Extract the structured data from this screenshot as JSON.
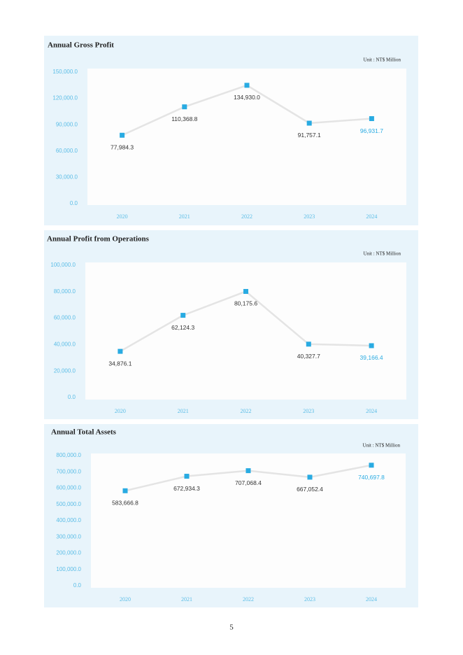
{
  "chart_data": [
    {
      "type": "line",
      "title": "Annual Gross Profit",
      "unit": "Unit : NT$ Million",
      "categories": [
        "2020",
        "2021",
        "2022",
        "2023",
        "2024"
      ],
      "series": [
        {
          "color": "#29abe2",
          "line_color": "#e4e4e4",
          "values": [
            77984.3,
            110368.8,
            134930.0,
            91757.1,
            96931.7
          ],
          "value_labels": [
            "77,984.3",
            "110,368.8",
            "134,930.0",
            "91,757.1",
            "96,931.7"
          ]
        }
      ],
      "ylim": [
        0,
        150000
      ],
      "yticks": [
        {
          "value": 0,
          "label": "0.0"
        },
        {
          "value": 30000,
          "label": "30,000.0"
        },
        {
          "value": 60000,
          "label": "60,000.0"
        },
        {
          "value": 90000,
          "label": "90,000.0"
        },
        {
          "value": 120000,
          "label": "120,000.0"
        },
        {
          "value": 150000,
          "label": "150,000.0"
        }
      ]
    },
    {
      "type": "line",
      "title": "Annual Profit from Operations",
      "unit": "Unit : NT$ Million",
      "categories": [
        "2020",
        "2021",
        "2022",
        "2023",
        "2024"
      ],
      "series": [
        {
          "color": "#29abe2",
          "line_color": "#e4e4e4",
          "values": [
            34876.1,
            62124.3,
            80175.6,
            40327.7,
            39166.4
          ],
          "value_labels": [
            "34,876.1",
            "62,124.3",
            "80,175.6",
            "40,327.7",
            "39,166.4"
          ]
        }
      ],
      "ylim": [
        0,
        100000
      ],
      "yticks": [
        {
          "value": 0,
          "label": "0.0"
        },
        {
          "value": 20000,
          "label": "20,000.0"
        },
        {
          "value": 40000,
          "label": "40,000.0"
        },
        {
          "value": 60000,
          "label": "60,000.0"
        },
        {
          "value": 80000,
          "label": "80,000.0"
        },
        {
          "value": 100000,
          "label": "100,000.0"
        }
      ]
    },
    {
      "type": "line",
      "title": "Annual Total Assets",
      "unit": "Unit : NT$ Million",
      "categories": [
        "2020",
        "2021",
        "2022",
        "2023",
        "2024"
      ],
      "series": [
        {
          "color": "#29abe2",
          "line_color": "#e4e4e4",
          "values": [
            583666.8,
            672934.3,
            707068.4,
            667052.4,
            740697.8
          ],
          "value_labels": [
            "583,666.8",
            "672,934.3",
            "707,068.4",
            "667,052.4",
            "740,697.8"
          ]
        }
      ],
      "ylim": [
        0,
        800000
      ],
      "yticks": [
        {
          "value": 0,
          "label": "0.0"
        },
        {
          "value": 100000,
          "label": "100,000.0"
        },
        {
          "value": 200000,
          "label": "200,000.0"
        },
        {
          "value": 300000,
          "label": "300,000.0"
        },
        {
          "value": 400000,
          "label": "400,000.0"
        },
        {
          "value": 500000,
          "label": "500,000.0"
        },
        {
          "value": 600000,
          "label": "600,000.0"
        },
        {
          "value": 700000,
          "label": "700,000.0"
        },
        {
          "value": 800000,
          "label": "800,000.0"
        }
      ]
    }
  ],
  "page_number": "5"
}
